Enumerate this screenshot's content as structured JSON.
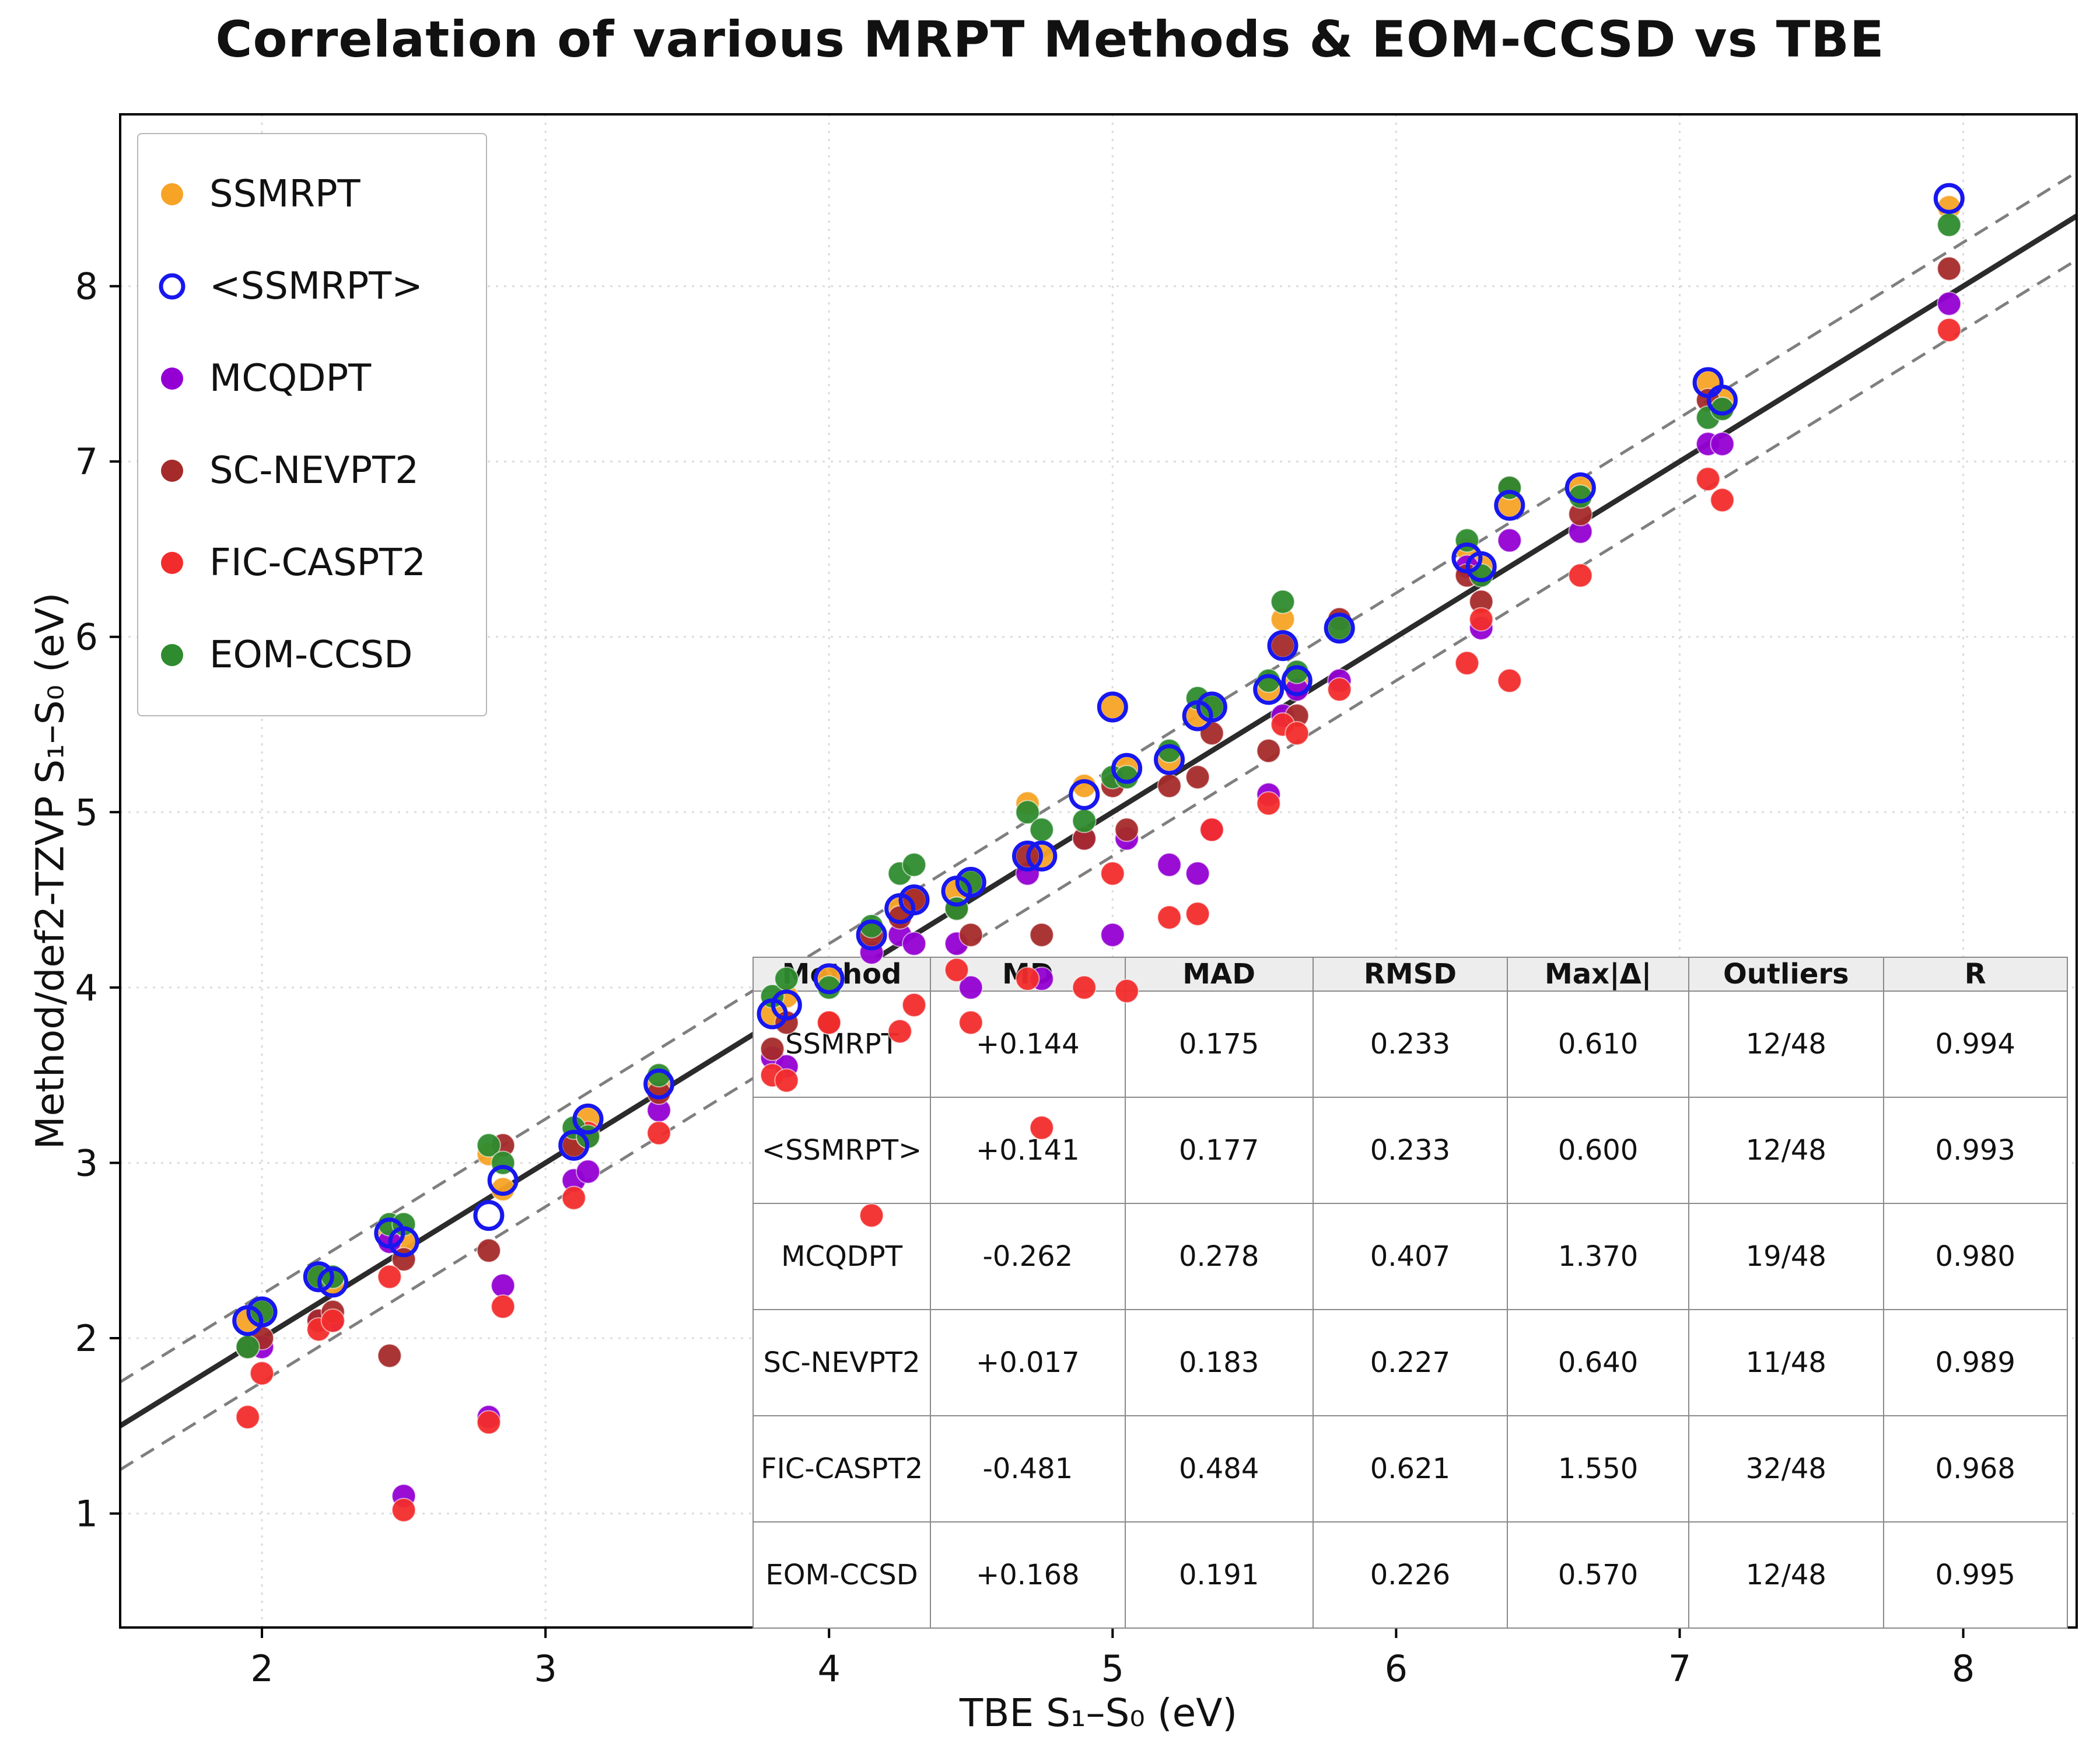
{
  "title": "Correlation of various MRPT Methods & EOM-CCSD vs TBE",
  "axes": {
    "xlabel": "TBE S₁–S₀ (eV)",
    "ylabel": "Method/def2-TZVP S₁–S₀ (eV)",
    "xlim": [
      1.5,
      8.4
    ],
    "ylim": [
      0.35,
      8.98
    ],
    "xticks": [
      2,
      3,
      4,
      5,
      6,
      7,
      8
    ],
    "yticks": [
      1,
      2,
      3,
      4,
      5,
      6,
      7,
      8
    ]
  },
  "chart_data": {
    "type": "scatter",
    "x": [
      1.95,
      2.0,
      2.2,
      2.25,
      2.45,
      2.5,
      2.8,
      2.85,
      3.1,
      3.15,
      3.4,
      3.8,
      3.85,
      4.0,
      4.15,
      4.25,
      4.3,
      4.45,
      4.5,
      4.7,
      4.75,
      4.9,
      5.0,
      5.05,
      5.2,
      5.3,
      5.35,
      5.55,
      5.6,
      5.65,
      5.8,
      6.25,
      6.3,
      6.4,
      6.65,
      7.1,
      7.15,
      7.95
    ],
    "series": [
      {
        "name": "SSMRPT",
        "color": "#F7A325",
        "marker": "filled",
        "values": [
          2.1,
          2.15,
          2.35,
          2.3,
          2.6,
          2.55,
          3.05,
          2.85,
          3.1,
          3.25,
          3.45,
          3.85,
          3.95,
          4.05,
          4.3,
          4.45,
          4.5,
          4.55,
          4.6,
          5.05,
          4.75,
          5.15,
          5.6,
          5.25,
          5.3,
          5.55,
          5.6,
          5.7,
          6.1,
          5.75,
          6.05,
          6.5,
          6.4,
          6.75,
          6.85,
          7.45,
          7.35,
          8.45
        ]
      },
      {
        "name": "<SSMRPT>",
        "color": "#1717EE",
        "marker": "open",
        "values": [
          2.1,
          2.15,
          2.35,
          2.32,
          2.6,
          2.55,
          2.7,
          2.9,
          3.1,
          3.25,
          3.45,
          3.85,
          3.9,
          4.05,
          4.3,
          4.45,
          4.5,
          4.55,
          4.6,
          4.75,
          4.75,
          5.1,
          5.6,
          5.25,
          5.3,
          5.55,
          5.6,
          5.7,
          5.95,
          5.75,
          6.05,
          6.45,
          6.4,
          6.75,
          6.85,
          7.45,
          7.35,
          8.5
        ]
      },
      {
        "name": "MCQDPT",
        "color": "#9400D3",
        "marker": "filled",
        "values": [
          1.95,
          1.95,
          2.1,
          2.1,
          2.55,
          1.1,
          1.55,
          2.3,
          2.9,
          2.95,
          3.3,
          3.6,
          3.55,
          3.8,
          4.2,
          4.3,
          4.25,
          4.25,
          4.0,
          4.65,
          4.05,
          4.85,
          4.3,
          4.85,
          4.7,
          4.65,
          4.9,
          5.1,
          5.55,
          5.7,
          5.75,
          6.4,
          6.05,
          6.55,
          6.6,
          7.1,
          7.1,
          7.9
        ]
      },
      {
        "name": "SC-NEVPT2",
        "color": "#A52A2A",
        "marker": "filled",
        "values": [
          1.95,
          2.0,
          2.1,
          2.15,
          1.9,
          2.45,
          2.5,
          3.1,
          3.1,
          3.15,
          3.4,
          3.65,
          3.8,
          3.8,
          4.3,
          4.4,
          4.5,
          4.45,
          4.3,
          4.75,
          4.3,
          4.85,
          5.15,
          4.9,
          5.15,
          5.2,
          5.45,
          5.35,
          5.95,
          5.55,
          6.1,
          6.35,
          6.2,
          6.85,
          6.7,
          7.35,
          7.3,
          8.1
        ]
      },
      {
        "name": "FIC-CASPT2",
        "color": "#F22C2C",
        "marker": "filled",
        "values": [
          1.55,
          1.8,
          2.05,
          2.1,
          2.35,
          1.02,
          1.52,
          2.18,
          2.8,
          3.17,
          3.17,
          3.5,
          3.47,
          3.8,
          2.7,
          3.75,
          3.9,
          4.1,
          3.8,
          4.05,
          3.2,
          4.0,
          4.65,
          3.98,
          4.4,
          4.42,
          4.9,
          5.05,
          5.5,
          5.45,
          5.7,
          5.85,
          6.1,
          5.75,
          6.35,
          6.9,
          6.78,
          7.75
        ]
      },
      {
        "name": "EOM-CCSD",
        "color": "#2E8B2E",
        "marker": "filled",
        "values": [
          1.95,
          2.15,
          2.35,
          2.35,
          2.65,
          2.65,
          3.1,
          3.0,
          3.2,
          3.15,
          3.5,
          3.95,
          4.05,
          4.0,
          4.35,
          4.65,
          4.7,
          4.45,
          4.6,
          5.0,
          4.9,
          4.95,
          5.2,
          5.2,
          5.35,
          5.65,
          5.6,
          5.75,
          6.2,
          5.8,
          6.05,
          6.55,
          6.35,
          6.85,
          6.8,
          7.25,
          7.3,
          8.35
        ]
      }
    ],
    "reference": {
      "identity_line": {
        "style": "solid",
        "color": "#2B2B2B"
      },
      "band_offset": 0.25,
      "band": {
        "style": "dashed",
        "color": "#7F7F7F"
      }
    },
    "grid": true,
    "legend_position": "upper-left"
  },
  "stats_table": {
    "headers": [
      "Method",
      "MD",
      "MAD",
      "RMSD",
      "Max|Δ|",
      "Outliers",
      "R"
    ],
    "rows": [
      [
        "SSMRPT",
        "+0.144",
        "0.175",
        "0.233",
        "0.610",
        "12/48",
        "0.994"
      ],
      [
        "<SSMRPT>",
        "+0.141",
        "0.177",
        "0.233",
        "0.600",
        "12/48",
        "0.993"
      ],
      [
        "MCQDPT",
        "-0.262",
        "0.278",
        "0.407",
        "1.370",
        "19/48",
        "0.980"
      ],
      [
        "SC-NEVPT2",
        "+0.017",
        "0.183",
        "0.227",
        "0.640",
        "11/48",
        "0.989"
      ],
      [
        "FIC-CASPT2",
        "-0.481",
        "0.484",
        "0.621",
        "1.550",
        "32/48",
        "0.968"
      ],
      [
        "EOM-CCSD",
        "+0.168",
        "0.191",
        "0.226",
        "0.570",
        "12/48",
        "0.995"
      ]
    ]
  }
}
